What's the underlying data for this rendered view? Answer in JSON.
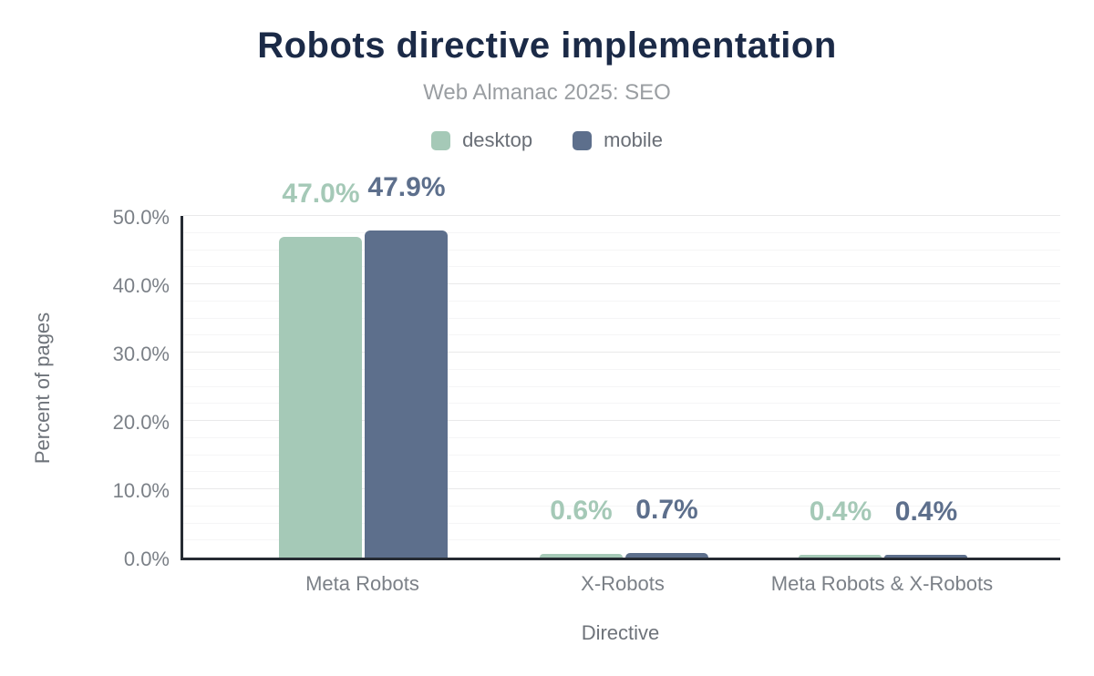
{
  "chart_data": {
    "type": "bar",
    "title": "Robots directive implementation",
    "subtitle": "Web Almanac 2025: SEO",
    "xlabel": "Directive",
    "ylabel": "Percent of pages",
    "categories": [
      "Meta Robots",
      "X-Robots",
      "Meta Robots & X-Robots"
    ],
    "series": [
      {
        "name": "desktop",
        "color": "#a5c9b7",
        "values": [
          47.0,
          0.6,
          0.4
        ],
        "labels": [
          "47.0%",
          "0.6%",
          "0.4%"
        ]
      },
      {
        "name": "mobile",
        "color": "#5d6f8c",
        "values": [
          47.9,
          0.7,
          0.4
        ],
        "labels": [
          "47.9%",
          "0.7%",
          "0.4%"
        ]
      }
    ],
    "ylim": [
      0,
      50
    ],
    "yticks": [
      {
        "value": 0,
        "label": "0.0%"
      },
      {
        "value": 10,
        "label": "10.0%"
      },
      {
        "value": 20,
        "label": "20.0%"
      },
      {
        "value": 30,
        "label": "30.0%"
      },
      {
        "value": 40,
        "label": "40.0%"
      },
      {
        "value": 50,
        "label": "50.0%"
      }
    ],
    "grid": {
      "minor_step": 2.5,
      "major_step": 10,
      "on": true
    },
    "legend_position": "top",
    "colors": {
      "title": "#1b2a47",
      "subtitle": "#9a9ea2",
      "legend_text": "#696e76",
      "tick_text": "#7b8087",
      "axis_title_text": "#6e737a",
      "axis_line": "#262b33",
      "grid_minor": "#f5f5f6",
      "grid_major": "#e9e9ea",
      "background": "#ffffff"
    }
  }
}
